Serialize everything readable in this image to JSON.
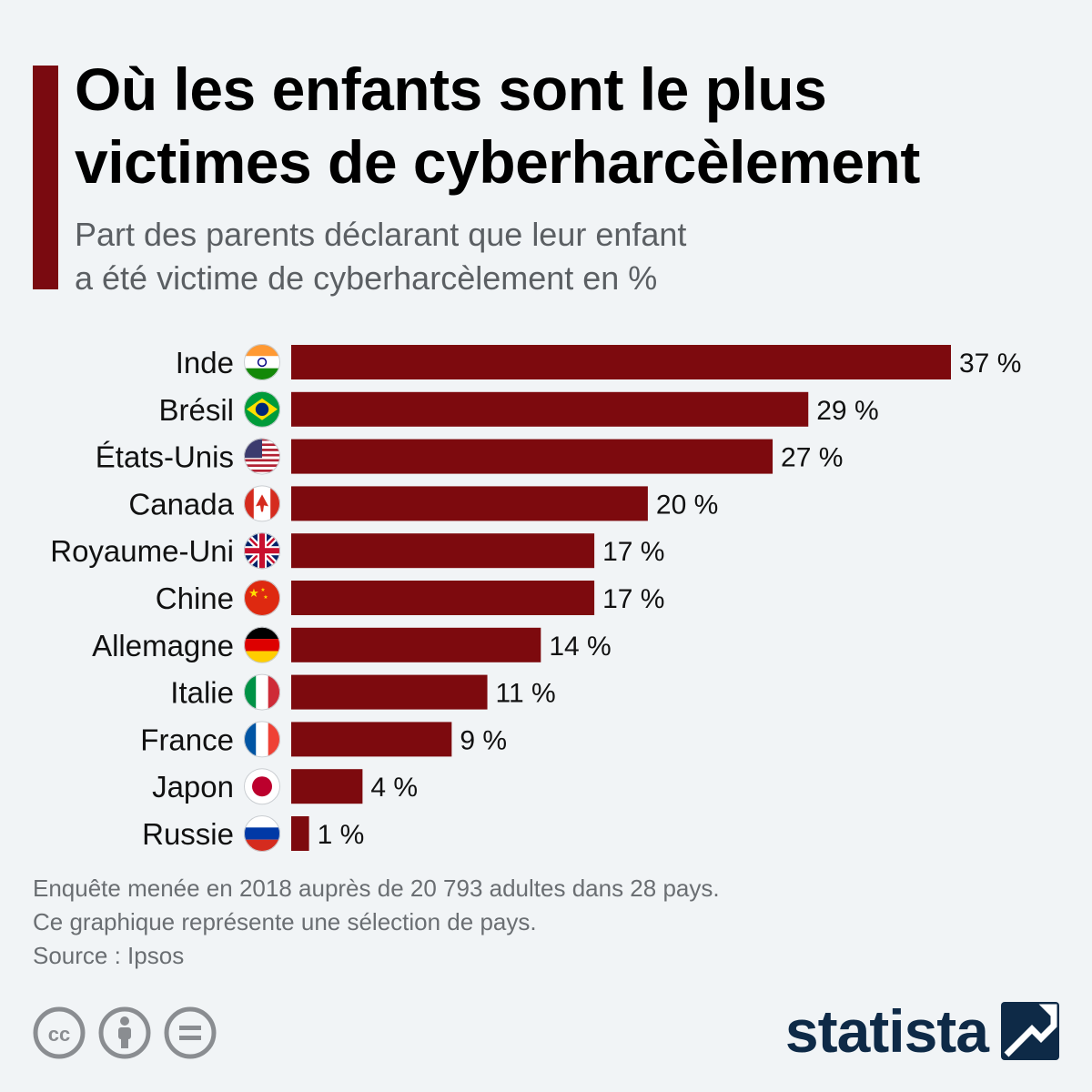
{
  "header": {
    "title_line1": "Où les enfants sont le plus",
    "title_line2": "victimes de cyberharcèlement",
    "subtitle_line1": "Part des parents déclarant que leur enfant",
    "subtitle_line2": "a été victime de cyberharcèlement en %"
  },
  "colors": {
    "accent": "#7a0a10",
    "bar": "#7d0a0e",
    "brand": "#0e2a47"
  },
  "chart_data": {
    "type": "bar",
    "orientation": "horizontal",
    "categories": [
      "Inde",
      "Brésil",
      "États-Unis",
      "Canada",
      "Royaume-Uni",
      "Chine",
      "Allemagne",
      "Italie",
      "France",
      "Japon",
      "Russie"
    ],
    "flags": [
      "india-flag-icon",
      "brazil-flag-icon",
      "usa-flag-icon",
      "canada-flag-icon",
      "uk-flag-icon",
      "china-flag-icon",
      "germany-flag-icon",
      "italy-flag-icon",
      "france-flag-icon",
      "japan-flag-icon",
      "russia-flag-icon"
    ],
    "values": [
      37,
      29,
      27,
      20,
      17,
      17,
      14,
      11,
      9,
      4,
      1
    ],
    "value_labels": [
      "37 %",
      "29 %",
      "27 %",
      "20 %",
      "17 %",
      "17 %",
      "14 %",
      "11 %",
      "9 %",
      "4 %",
      "1 %"
    ],
    "xlim": [
      0,
      37
    ],
    "grid": false,
    "legend": "none"
  },
  "footer": {
    "note_line1": "Enquête menée en 2018 auprès de 20 793 adultes dans 28 pays.",
    "note_line2": "Ce graphique représente une sélection de pays.",
    "source": "Source : Ipsos",
    "license_icons": [
      "cc-icon",
      "attribution-icon",
      "no-derivatives-icon"
    ],
    "brand": "statista"
  }
}
